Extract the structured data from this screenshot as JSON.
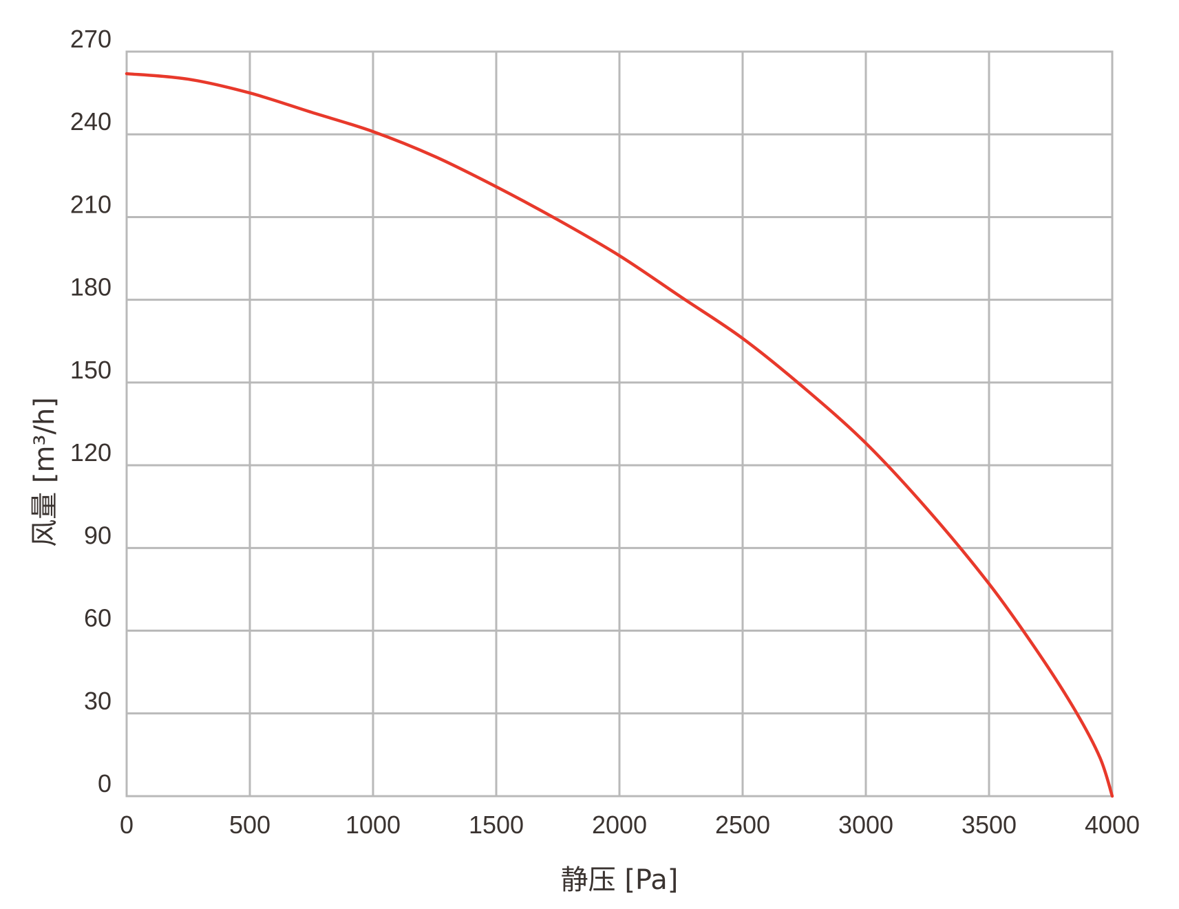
{
  "chart_data": {
    "type": "line",
    "title": "",
    "xlabel": "静压 [Pa]",
    "ylabel": "风量 [m³/h]",
    "xlim": [
      0,
      4000
    ],
    "ylim": [
      0,
      270
    ],
    "xticks": [
      0,
      500,
      1000,
      1500,
      2000,
      2500,
      3000,
      3500,
      4000
    ],
    "yticks": [
      0,
      30,
      60,
      90,
      120,
      150,
      180,
      210,
      240,
      270
    ],
    "grid": true,
    "series": [
      {
        "color": "#e8392b",
        "x": [
          0,
          250,
          500,
          750,
          1000,
          1250,
          1500,
          1750,
          2000,
          2250,
          2500,
          2750,
          3000,
          3250,
          3500,
          3700,
          3850,
          3950,
          4000
        ],
        "y": [
          262,
          260,
          255,
          248,
          241,
          232,
          221,
          209,
          196,
          181,
          166,
          148,
          128,
          104,
          77,
          52,
          31,
          14,
          0
        ]
      }
    ]
  }
}
